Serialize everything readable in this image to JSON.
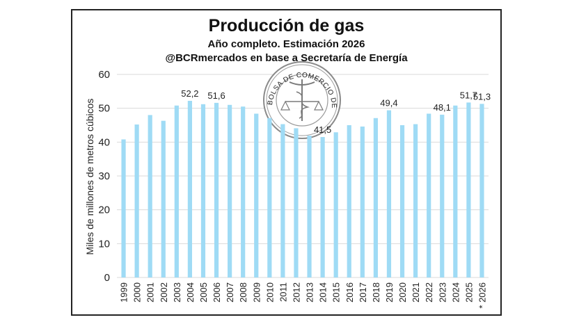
{
  "chart_data": {
    "type": "bar",
    "title": "Producción de gas",
    "subtitle": "Año completo. Estimación 2026",
    "source": "@BCRmercados en base a Secretaría de Energía",
    "ylabel": "Miles de millones de metros cúbicos",
    "xlabel": "",
    "ylim": [
      0,
      60
    ],
    "yticks": [
      0,
      10,
      20,
      30,
      40,
      50,
      60
    ],
    "grid": true,
    "bar_color": "#9fdbf5",
    "categories": [
      "1999",
      "2000",
      "2001",
      "2002",
      "2003",
      "2004",
      "2005",
      "2006",
      "2007",
      "2008",
      "2009",
      "2010",
      "2011",
      "2012",
      "2013",
      "2014",
      "2015",
      "2016",
      "2017",
      "2018",
      "2019",
      "2020",
      "2021",
      "2022",
      "2023",
      "2024",
      "2025",
      "* 2026"
    ],
    "values": [
      40.8,
      45.2,
      48.0,
      46.3,
      50.8,
      52.2,
      51.2,
      51.6,
      51.0,
      50.5,
      48.4,
      47.1,
      45.3,
      44.1,
      41.9,
      41.5,
      42.9,
      45.0,
      44.6,
      47.1,
      49.4,
      45.0,
      45.3,
      48.4,
      48.1,
      50.8,
      51.7,
      51.3
    ],
    "data_labels": [
      {
        "index": 5,
        "text": "52,2"
      },
      {
        "index": 7,
        "text": "51,6"
      },
      {
        "index": 15,
        "text": "41,5"
      },
      {
        "index": 20,
        "text": "49,4"
      },
      {
        "index": 24,
        "text": "48,1"
      },
      {
        "index": 26,
        "text": "51,7"
      },
      {
        "index": 27,
        "text": "51,3"
      }
    ]
  },
  "watermark": {
    "text": "BOLSA DE COMERCIO DE ROSARIO",
    "icon": "caduceus-scales-seal-icon"
  }
}
